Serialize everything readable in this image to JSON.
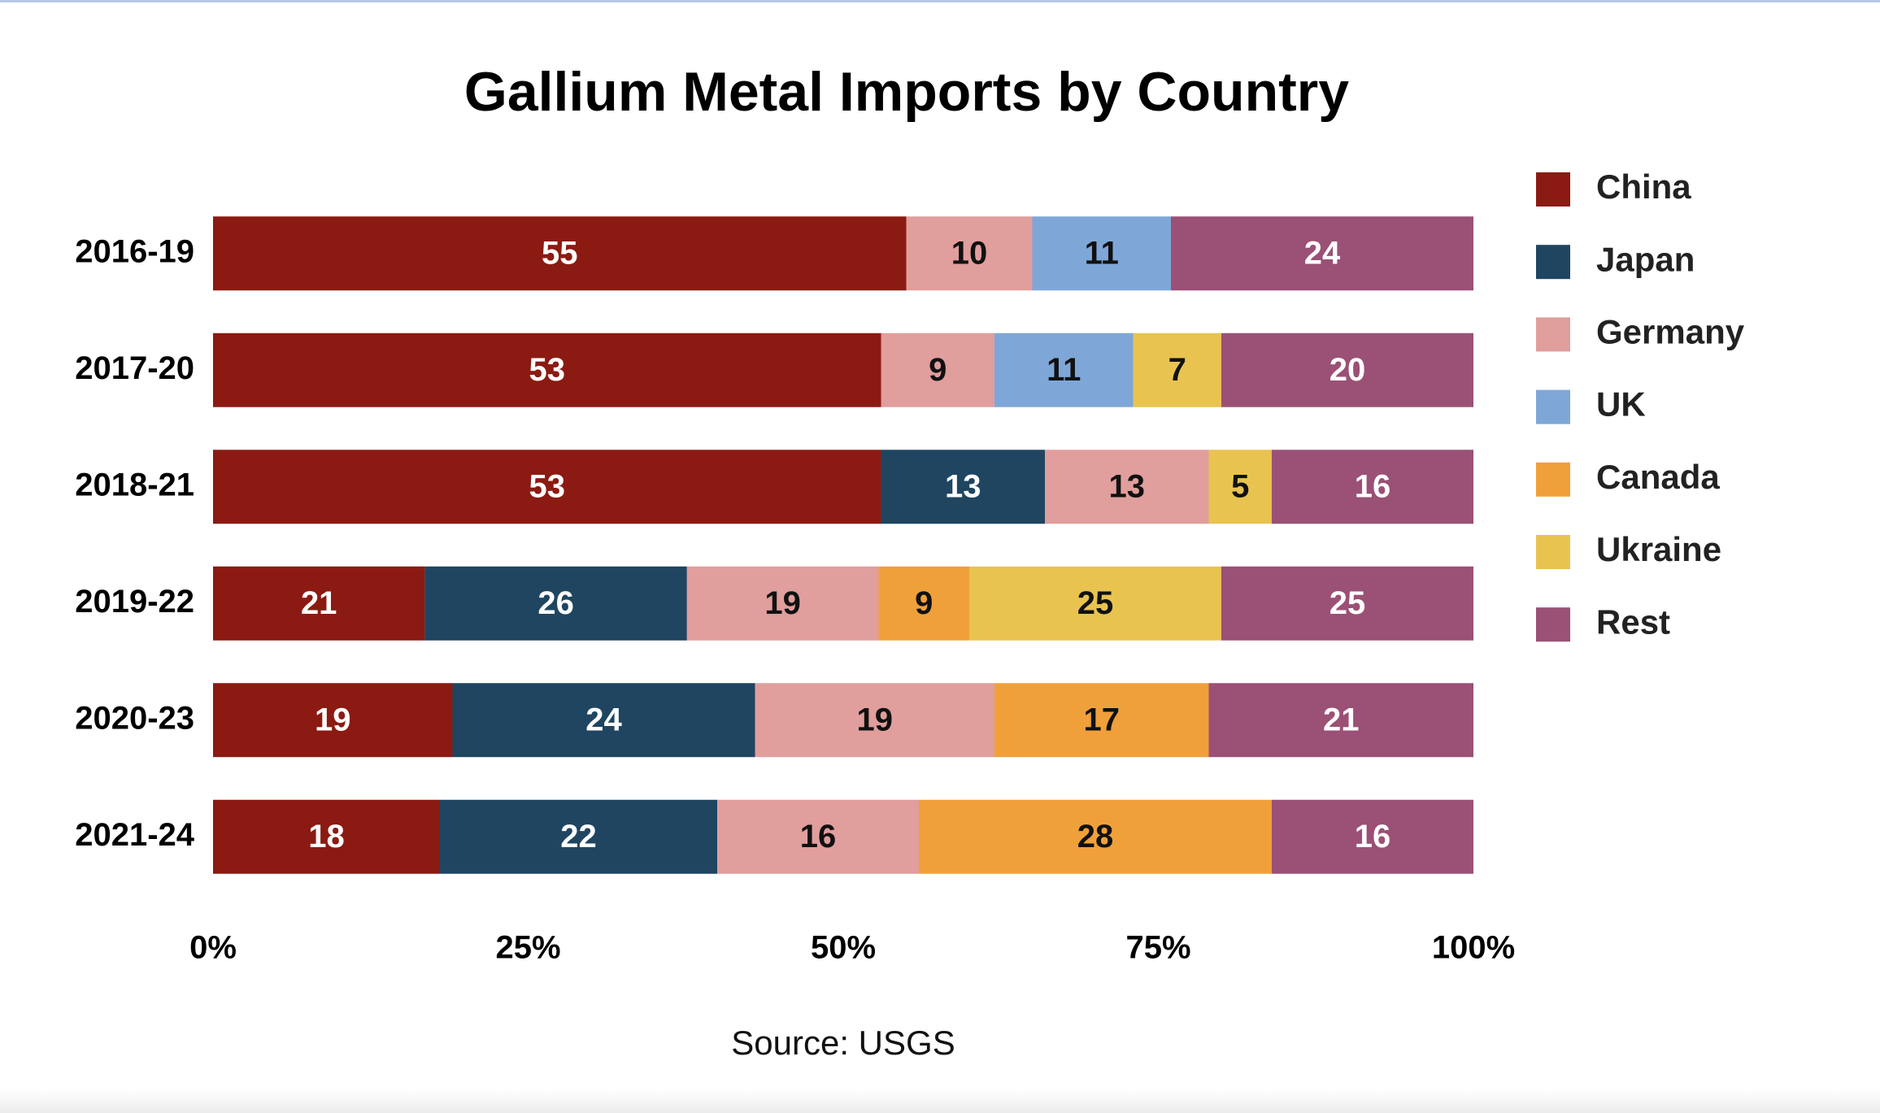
{
  "chart_data": {
    "type": "bar",
    "orientation": "horizontal",
    "stacked": "percent",
    "title": "Gallium Metal Imports by Country",
    "source": "Source: USGS",
    "categories": [
      "2016-19",
      "2017-20",
      "2018-21",
      "2019-22",
      "2020-23",
      "2021-24"
    ],
    "series": [
      {
        "name": "China",
        "color": "#8b1a12",
        "values": [
          55,
          53,
          53,
          21,
          19,
          18
        ]
      },
      {
        "name": "Japan",
        "color": "#1f4560",
        "values": [
          null,
          null,
          13,
          26,
          24,
          22
        ]
      },
      {
        "name": "Germany",
        "color": "#e09e9c",
        "values": [
          10,
          9,
          13,
          19,
          19,
          16
        ]
      },
      {
        "name": "UK",
        "color": "#7ea7d8",
        "values": [
          11,
          11,
          null,
          null,
          null,
          null
        ]
      },
      {
        "name": "Canada",
        "color": "#f0a03a",
        "values": [
          null,
          null,
          null,
          9,
          17,
          28
        ]
      },
      {
        "name": "Ukraine",
        "color": "#e8c350",
        "values": [
          null,
          7,
          5,
          25,
          null,
          null
        ]
      },
      {
        "name": "Rest",
        "color": "#9b5076",
        "values": [
          24,
          20,
          16,
          25,
          21,
          16
        ]
      }
    ],
    "xlim": [
      0,
      100
    ],
    "xticks": [
      {
        "value": 0,
        "label": "0%"
      },
      {
        "value": 25,
        "label": "25%"
      },
      {
        "value": 50,
        "label": "50%"
      },
      {
        "value": 75,
        "label": "75%"
      },
      {
        "value": 100,
        "label": "100%"
      }
    ],
    "legend": "right"
  }
}
